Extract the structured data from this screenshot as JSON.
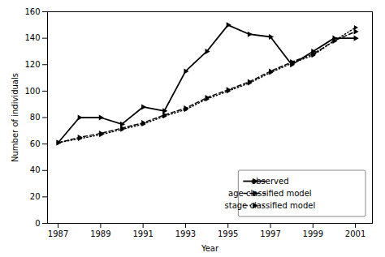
{
  "chart_data": {
    "type": "line",
    "x": [
      1987,
      1988,
      1989,
      1990,
      1991,
      1992,
      1993,
      1994,
      1995,
      1996,
      1997,
      1998,
      1999,
      2000,
      2001
    ],
    "series": [
      {
        "name": "observed",
        "color": "#000000",
        "line_style": "solid",
        "marker": "triangle-right",
        "values": [
          61,
          80,
          80,
          75,
          88,
          85,
          115,
          130,
          150,
          143,
          141,
          120,
          130,
          140,
          140
        ]
      },
      {
        "name": "age classified model",
        "color": "#000000",
        "line_style": "dashed",
        "marker": "triangle-right",
        "values": [
          61,
          65,
          68,
          72,
          76,
          82,
          87,
          95,
          101,
          107,
          115,
          122,
          128,
          138,
          145
        ]
      },
      {
        "name": "stage classified model",
        "color": "#000000",
        "line_style": "dotted",
        "marker": "triangle-right",
        "values": [
          61,
          64,
          67,
          71,
          75,
          81,
          86,
          94,
          100,
          106,
          114,
          121,
          127,
          138,
          148
        ]
      }
    ],
    "xlabel": "Year",
    "ylabel": "Number of individuals",
    "xlim": [
      1986.5,
      2001.8
    ],
    "ylim": [
      0,
      160
    ],
    "xticks": [
      1987,
      1989,
      1991,
      1993,
      1995,
      1997,
      1999,
      2001
    ],
    "yticks": [
      0,
      20,
      40,
      60,
      80,
      100,
      120,
      140,
      160
    ],
    "grid": false,
    "legend": "lower right"
  }
}
